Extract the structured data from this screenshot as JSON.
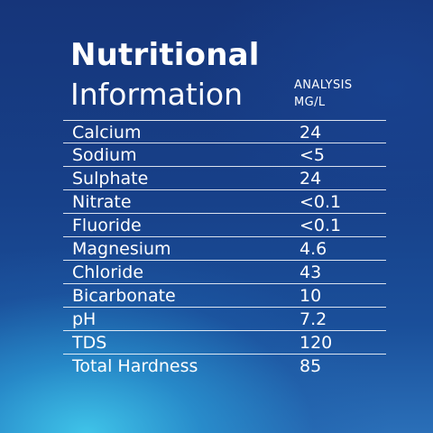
{
  "title": {
    "line1": "Nutritional",
    "line2": "Information"
  },
  "column_header": {
    "line1": "ANALYSIS",
    "line2": "MG/L"
  },
  "rows": [
    {
      "name": "Calcium",
      "value": "24"
    },
    {
      "name": "Sodium",
      "value": "<5"
    },
    {
      "name": "Sulphate",
      "value": "24"
    },
    {
      "name": "Nitrate",
      "value": "<0.1"
    },
    {
      "name": "Fluoride",
      "value": "<0.1"
    },
    {
      "name": "Magnesium",
      "value": "4.6"
    },
    {
      "name": "Chloride",
      "value": "43"
    },
    {
      "name": "Bicarbonate",
      "value": "10"
    },
    {
      "name": "pH",
      "value": "7.2"
    },
    {
      "name": "TDS",
      "value": "120"
    },
    {
      "name": "Total Hardness",
      "value": "85"
    }
  ],
  "colors": {
    "background": "#173f86",
    "accent_glow": "#40c8eb",
    "text": "#ffffff"
  }
}
